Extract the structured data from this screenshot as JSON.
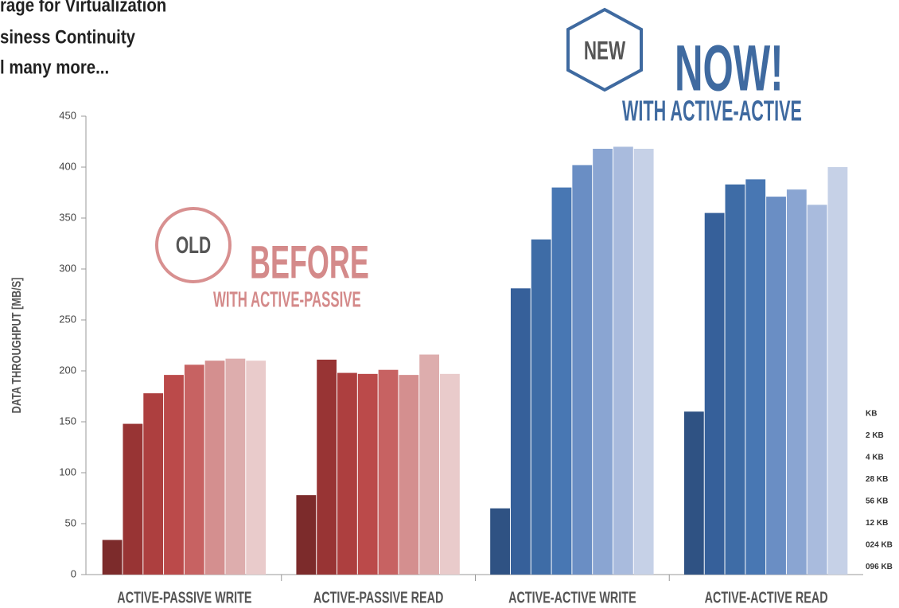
{
  "header": {
    "lines": [
      "rage for Virtualization",
      "siness Continuity",
      "l many more..."
    ]
  },
  "chart_data": {
    "type": "bar",
    "ylabel": "DATA THROUGHPUT [MB/S]",
    "annotations": {
      "old_badge": "OLD",
      "old_title": "BEFORE",
      "old_subtitle": "WITH ACTIVE-PASSIVE",
      "new_badge": "NEW",
      "new_title": "NOW!",
      "new_subtitle": "WITH ACTIVE-ACTIVE"
    },
    "categories": [
      "ACTIVE-PASSIVE WRITE",
      "ACTIVE-PASSIVE READ",
      "ACTIVE-ACTIVE WRITE",
      "ACTIVE-ACTIVE READ"
    ],
    "series": [
      {
        "name": "KB",
        "colors": [
          "#7c2b2b",
          "#7c2b2b",
          "#2f5283",
          "#2f5283"
        ],
        "values": [
          34,
          78,
          65,
          160
        ]
      },
      {
        "name": "2 KB",
        "colors": [
          "#983434",
          "#983434",
          "#36609a",
          "#36609a"
        ],
        "values": [
          148,
          211,
          281,
          355
        ]
      },
      {
        "name": "4 KB",
        "colors": [
          "#ad3f3f",
          "#ad3f3f",
          "#3e6ca6",
          "#3e6ca6"
        ],
        "values": [
          178,
          198,
          329,
          383
        ]
      },
      {
        "name": "28 KB",
        "colors": [
          "#bb4a4a",
          "#bb4a4a",
          "#4877b3",
          "#4877b3"
        ],
        "values": [
          196,
          197,
          380,
          388
        ]
      },
      {
        "name": "56 KB",
        "colors": [
          "#c76262",
          "#c76262",
          "#6a8ec4",
          "#6a8ec4"
        ],
        "values": [
          206,
          201,
          402,
          371
        ]
      },
      {
        "name": "12 KB",
        "colors": [
          "#d48f8f",
          "#d48f8f",
          "#8aa5d2",
          "#8aa5d2"
        ],
        "values": [
          210,
          196,
          418,
          378
        ]
      },
      {
        "name": "024 KB",
        "colors": [
          "#ddadad",
          "#ddadad",
          "#a9bbdd",
          "#a9bbdd"
        ],
        "values": [
          212,
          216,
          420,
          363
        ]
      },
      {
        "name": "096 KB",
        "colors": [
          "#e9cbcb",
          "#e9cbcb",
          "#c6d1e7",
          "#c6d1e7"
        ],
        "values": [
          210,
          197,
          418,
          400
        ]
      }
    ],
    "ylim": [
      0,
      450
    ],
    "yticks": [
      0,
      50,
      100,
      150,
      200,
      250,
      300,
      350,
      400,
      450
    ]
  }
}
